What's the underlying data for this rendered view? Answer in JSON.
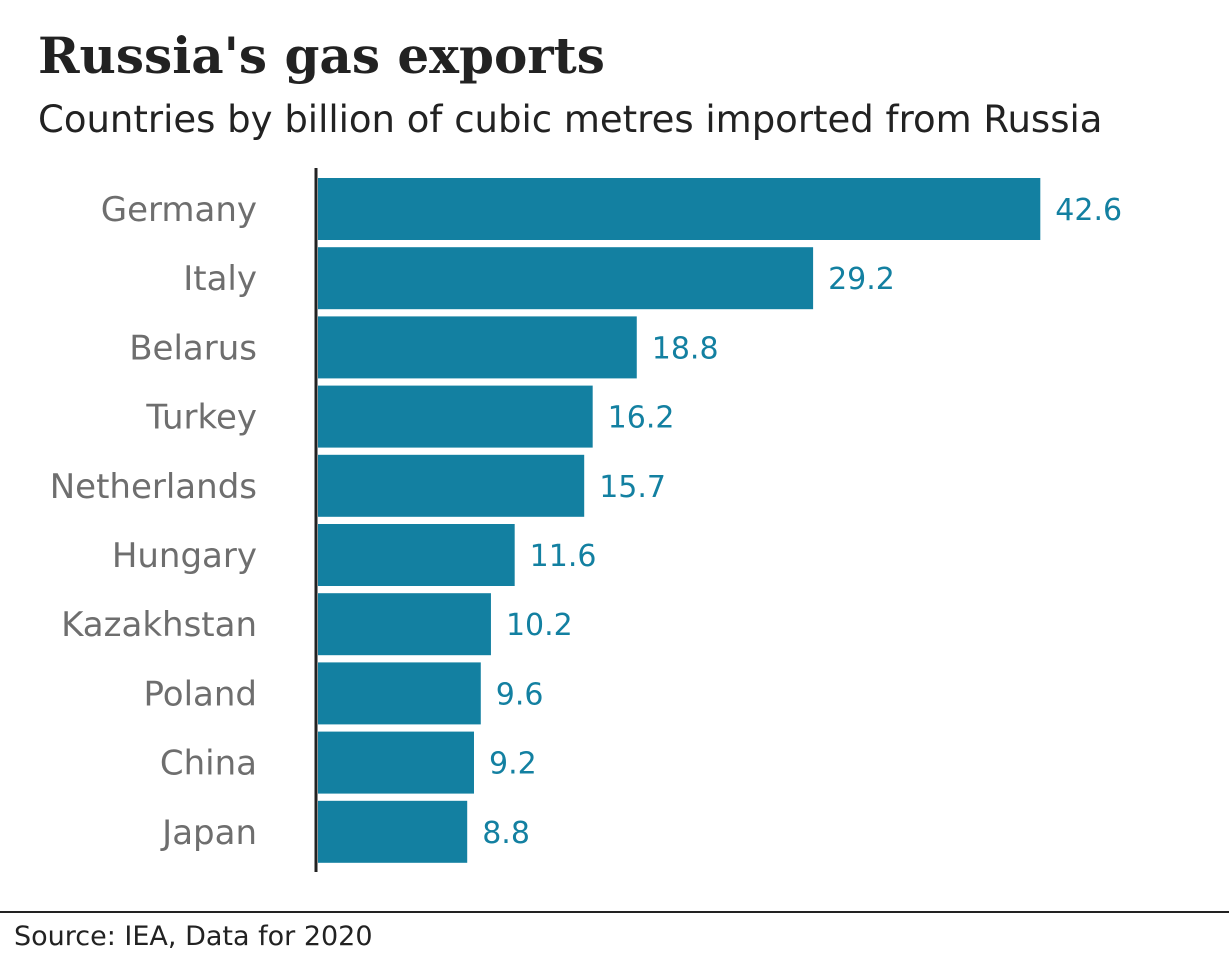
{
  "chart_data": {
    "type": "bar",
    "orientation": "horizontal",
    "title": "Russia's gas exports",
    "subtitle": "Countries by billion of cubic metres imported from Russia",
    "categories": [
      "Germany",
      "Italy",
      "Belarus",
      "Turkey",
      "Netherlands",
      "Hungary",
      "Kazakhstan",
      "Poland",
      "China",
      "Japan"
    ],
    "values": [
      42.6,
      29.2,
      18.8,
      16.2,
      15.7,
      11.6,
      10.2,
      9.6,
      9.2,
      8.8
    ],
    "value_labels": [
      "42.6",
      "29.2",
      "18.8",
      "16.2",
      "15.7",
      "11.6",
      "10.2",
      "9.6",
      "9.2",
      "8.8"
    ],
    "xlim": [
      0,
      45
    ],
    "grid": false,
    "legend": "none",
    "colors": {
      "bar": "#1380a1",
      "value_label": "#1380a1",
      "category_label": "#6e6e6e",
      "axis": "#222222"
    }
  },
  "footer": {
    "source": "Source: IEA, Data for 2020"
  }
}
